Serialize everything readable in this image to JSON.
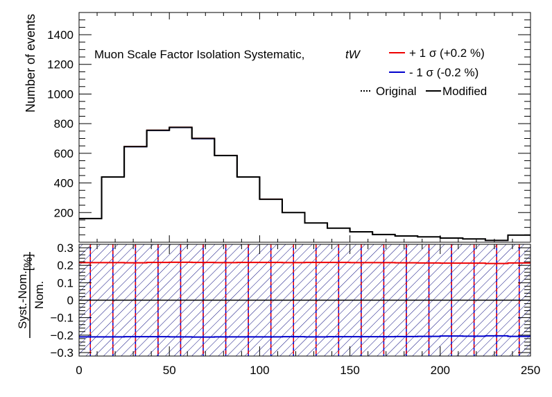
{
  "chart_data": [
    {
      "type": "line",
      "subtype": "step-histogram",
      "title": "Muon Scale Factor Isolation Systematic,",
      "process_label": "tW",
      "ylabel": "Number of events",
      "xlim": [
        0,
        250
      ],
      "ylim": [
        0,
        1550
      ],
      "yticks": [
        200,
        400,
        600,
        800,
        1000,
        1200,
        1400
      ],
      "ytick_labels": [
        "200",
        "400",
        "600",
        "800",
        "1000",
        "1200",
        "1400"
      ],
      "bin_edges": [
        0,
        12.5,
        25,
        37.5,
        50,
        62.5,
        75,
        87.5,
        100,
        112.5,
        125,
        137.5,
        150,
        162.5,
        175,
        187.5,
        200,
        212.5,
        225,
        237.5,
        250
      ],
      "series": [
        {
          "name": "Modified",
          "values": [
            160,
            440,
            645,
            755,
            775,
            700,
            585,
            440,
            290,
            200,
            130,
            95,
            70,
            52,
            42,
            36,
            28,
            22,
            12,
            48
          ]
        },
        {
          "name": "+ 1 σ (+0.2 %)",
          "values": [
            160,
            441,
            646,
            756,
            777,
            702,
            586,
            441,
            291,
            200,
            130,
            95,
            70,
            52,
            42,
            36,
            28,
            22,
            12,
            48
          ]
        },
        {
          "name": "- 1 σ (-0.2 %)",
          "values": [
            160,
            439,
            644,
            754,
            773,
            698,
            584,
            439,
            289,
            200,
            130,
            95,
            70,
            52,
            42,
            36,
            28,
            22,
            12,
            48
          ]
        }
      ],
      "legend": {
        "placement": "top-right",
        "entries": [
          {
            "label": "+ 1 σ (+0.2 %)",
            "color": "#ee0000",
            "style": "solid"
          },
          {
            "label": "- 1 σ (-0.2 %)",
            "color": "#0000cc",
            "style": "solid"
          },
          {
            "label": "Original",
            "color": "#000000",
            "style": "dotted"
          },
          {
            "label": "Modified",
            "color": "#000000",
            "style": "solid"
          }
        ]
      }
    },
    {
      "type": "line",
      "subtype": "ratio",
      "ylabel_num": "Syst.-Nom.",
      "ylabel_den": "Nom.",
      "ylabel_unit": "[%]",
      "xlim": [
        0,
        250
      ],
      "ylim": [
        -0.32,
        0.32
      ],
      "xticks": [
        0,
        50,
        100,
        150,
        200,
        250
      ],
      "xtick_labels": [
        "0",
        "50",
        "100",
        "150",
        "200",
        "250"
      ],
      "yticks": [
        -0.3,
        -0.2,
        -0.1,
        0,
        0.1,
        0.2,
        0.3
      ],
      "ytick_labels": [
        "−0.3",
        "−0.2",
        "−0.1",
        "0",
        "0.1",
        "0.2",
        "0.3"
      ],
      "up_values": [
        0.215,
        0.215,
        0.214,
        0.216,
        0.217,
        0.216,
        0.215,
        0.216,
        0.216,
        0.215,
        0.216,
        0.216,
        0.215,
        0.215,
        0.214,
        0.213,
        0.212,
        0.212,
        0.21,
        0.213
      ],
      "down_values": [
        -0.21,
        -0.21,
        -0.209,
        -0.209,
        -0.21,
        -0.211,
        -0.21,
        -0.21,
        -0.21,
        -0.209,
        -0.21,
        -0.209,
        -0.209,
        -0.209,
        -0.208,
        -0.207,
        -0.205,
        -0.206,
        -0.204,
        -0.207
      ],
      "colors": {
        "up": "#ee0000",
        "down": "#0000cc",
        "nominal": "#000000",
        "hatch": "#0d0d80"
      }
    }
  ]
}
